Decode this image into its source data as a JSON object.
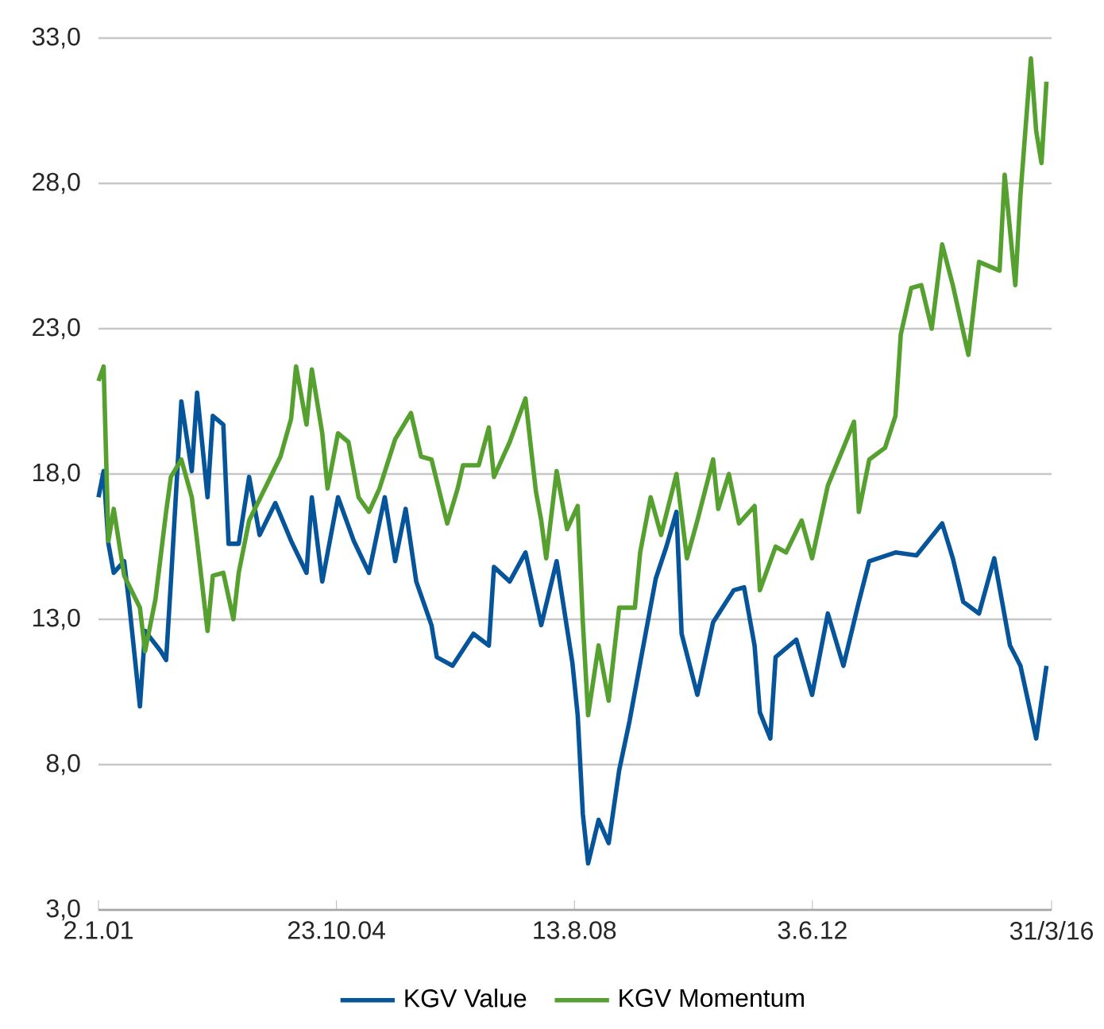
{
  "chart_data": {
    "type": "line",
    "ylim": [
      3,
      33
    ],
    "yticks": [
      {
        "value": 3,
        "label": "3,0"
      },
      {
        "value": 8,
        "label": "8,0"
      },
      {
        "value": 13,
        "label": "13,0"
      },
      {
        "value": 18,
        "label": "18,0"
      },
      {
        "value": 23,
        "label": "23,0"
      },
      {
        "value": 28,
        "label": "28,0"
      },
      {
        "value": 33,
        "label": "33,0"
      }
    ],
    "xlim": [
      "2001-01-02",
      "2016-03-31"
    ],
    "xticks": [
      {
        "value": "2001-01-02",
        "label": "2.1.01"
      },
      {
        "value": "2004-10-23",
        "label": "23.10.04"
      },
      {
        "value": "2008-08-13",
        "label": "13.8.08"
      },
      {
        "value": "2012-06-03",
        "label": "3.6.12"
      },
      {
        "value": "2016-03-31",
        "label": "31/3/16"
      }
    ],
    "grid": "y",
    "legend": "bottom",
    "marker": "none",
    "line_style": "solid",
    "series": [
      {
        "name": "KGV Value",
        "color": "#06559a",
        "x": [
          "2001-01-02",
          "2001-02",
          "2001-03",
          "2001-04",
          "2001-06",
          "2001-07",
          "2001-09",
          "2001-10",
          "2002-01",
          "2002-02",
          "2002-03",
          "2002-05",
          "2002-07",
          "2002-08",
          "2002-10",
          "2002-11",
          "2003-01",
          "2003-02",
          "2003-04",
          "2003-06",
          "2003-08",
          "2003-11",
          "2004-02",
          "2004-05",
          "2004-06",
          "2004-08",
          "2004-11",
          "2005-02",
          "2005-05",
          "2005-08",
          "2005-10",
          "2005-12",
          "2006-02",
          "2006-05",
          "2006-06",
          "2006-09",
          "2007-01",
          "2007-04",
          "2007-05",
          "2007-08",
          "2007-11",
          "2008-02",
          "2008-05",
          "2008-08",
          "2008-09",
          "2008-10",
          "2008-11",
          "2009-01",
          "2009-03",
          "2009-05",
          "2009-07",
          "2009-09",
          "2009-12",
          "2010-02",
          "2010-04",
          "2010-05",
          "2010-08",
          "2010-11",
          "2011-03",
          "2011-05",
          "2011-07",
          "2011-08",
          "2011-10",
          "2011-11",
          "2012-03",
          "2012-06",
          "2012-09",
          "2012-12",
          "2013-03",
          "2013-05",
          "2013-10",
          "2014-02",
          "2014-07",
          "2014-09",
          "2014-11",
          "2015-02",
          "2015-05",
          "2015-08",
          "2015-10",
          "2016-01",
          "2016-03"
        ],
        "values": [
          17.2,
          18.1,
          15.6,
          14.6,
          15.0,
          13.5,
          10.0,
          12.6,
          11.9,
          11.6,
          14.3,
          20.5,
          18.1,
          20.8,
          17.2,
          20.0,
          19.7,
          15.6,
          15.6,
          17.9,
          15.9,
          17.0,
          15.7,
          14.6,
          17.2,
          14.3,
          17.2,
          15.7,
          14.6,
          17.2,
          15.0,
          16.8,
          14.3,
          12.8,
          11.7,
          11.4,
          12.5,
          12.1,
          14.8,
          14.3,
          15.3,
          12.8,
          15.0,
          11.5,
          9.7,
          6.3,
          4.6,
          6.1,
          5.3,
          7.8,
          9.5,
          11.5,
          14.4,
          15.5,
          16.7,
          12.5,
          10.4,
          12.9,
          14.0,
          14.1,
          12.1,
          9.8,
          8.9,
          11.7,
          12.3,
          10.4,
          13.2,
          11.4,
          13.6,
          15.0,
          15.3,
          15.2,
          16.3,
          15.1,
          13.6,
          13.2,
          15.1,
          12.1,
          11.4,
          8.9,
          11.4
        ]
      },
      {
        "name": "KGV Momentum",
        "color": "#55a02f",
        "x": [
          "2001-01-02",
          "2001-02",
          "2001-03",
          "2001-04",
          "2001-06",
          "2001-09",
          "2001-10",
          "2001-12",
          "2002-02",
          "2002-03",
          "2002-05",
          "2002-07",
          "2002-08",
          "2002-10",
          "2002-11",
          "2003-01",
          "2003-03",
          "2003-04",
          "2003-06",
          "2003-09",
          "2003-12",
          "2004-02",
          "2004-03",
          "2004-05",
          "2004-06",
          "2004-08",
          "2004-09",
          "2004-11",
          "2005-01",
          "2005-03",
          "2005-05",
          "2005-07",
          "2005-10",
          "2006-01",
          "2006-03",
          "2006-05",
          "2006-08",
          "2006-10",
          "2006-11",
          "2007-02",
          "2007-04",
          "2007-05",
          "2007-08",
          "2007-11",
          "2007-12",
          "2008-01",
          "2008-02",
          "2008-03",
          "2008-05",
          "2008-07",
          "2008-09",
          "2008-10",
          "2008-11",
          "2009-01",
          "2009-03",
          "2009-05",
          "2009-08",
          "2009-09",
          "2009-11",
          "2010-01",
          "2010-04",
          "2010-06",
          "2010-08",
          "2010-11",
          "2010-12",
          "2011-02",
          "2011-04",
          "2011-07",
          "2011-08",
          "2011-11",
          "2012-01",
          "2012-04",
          "2012-06",
          "2012-09",
          "2012-12",
          "2013-02",
          "2013-03",
          "2013-05",
          "2013-08",
          "2013-10",
          "2013-11",
          "2014-01",
          "2014-03",
          "2014-05",
          "2014-07",
          "2014-09",
          "2014-12",
          "2015-02",
          "2015-06",
          "2015-07",
          "2015-09",
          "2015-10",
          "2015-12",
          "2016-01",
          "2016-02",
          "2016-03"
        ],
        "values": [
          21.2,
          21.7,
          15.7,
          16.8,
          14.5,
          13.4,
          11.9,
          13.7,
          16.7,
          17.9,
          18.5,
          17.2,
          15.7,
          12.6,
          14.5,
          14.6,
          13.0,
          14.6,
          16.4,
          17.5,
          18.6,
          19.9,
          21.7,
          19.7,
          21.6,
          19.4,
          17.5,
          19.4,
          19.1,
          17.2,
          16.7,
          17.5,
          19.2,
          20.1,
          18.6,
          18.5,
          16.3,
          17.5,
          18.3,
          18.3,
          19.6,
          17.9,
          19.1,
          20.6,
          19.0,
          17.4,
          16.4,
          15.1,
          18.1,
          16.1,
          16.9,
          12.9,
          9.7,
          12.1,
          10.2,
          13.4,
          13.4,
          15.3,
          17.2,
          15.9,
          18.0,
          15.1,
          16.4,
          18.5,
          16.8,
          18.0,
          16.3,
          16.9,
          14.0,
          15.5,
          15.3,
          16.4,
          15.1,
          17.6,
          18.9,
          19.8,
          16.7,
          18.5,
          18.9,
          20.0,
          22.8,
          24.4,
          24.5,
          23.0,
          25.9,
          24.5,
          22.1,
          25.3,
          25.0,
          28.3,
          24.5,
          27.6,
          32.3,
          29.8,
          28.7,
          31.5
        ]
      }
    ]
  }
}
